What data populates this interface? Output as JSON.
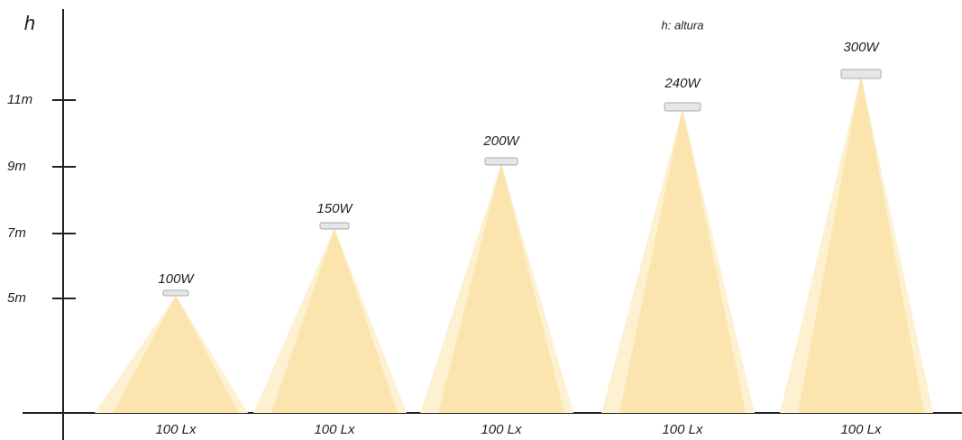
{
  "axis": {
    "label": "h",
    "ticks": [
      "11m",
      "9m",
      "7m",
      "5m"
    ]
  },
  "legend": "h: altura",
  "lamps": [
    {
      "power": "100W",
      "illuminance": "100 Lx"
    },
    {
      "power": "150W",
      "illuminance": "100 Lx"
    },
    {
      "power": "200W",
      "illuminance": "100 Lx"
    },
    {
      "power": "240W",
      "illuminance": "100 Lx"
    },
    {
      "power": "300W",
      "illuminance": "100 Lx"
    }
  ]
}
